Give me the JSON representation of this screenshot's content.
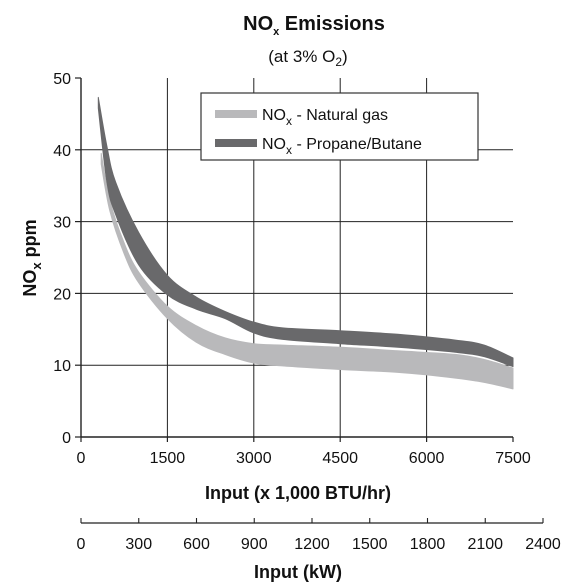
{
  "chart_data": {
    "type": "area",
    "title": {
      "main": "NO",
      "sub": "x",
      "rest": " Emissions"
    },
    "subtitle": {
      "pre": "(at 3% O",
      "sub": "2",
      "post": ")"
    },
    "xlabel": "Input (x 1,000 BTU/hr)",
    "ylabel": {
      "main": "NO",
      "sub": "x",
      "rest": " ppm"
    },
    "xlim": [
      0,
      7500
    ],
    "ylim": [
      0,
      50
    ],
    "x_ticks": [
      "0",
      "1500",
      "3000",
      "4500",
      "6000",
      "7500"
    ],
    "x_tick_values": [
      0,
      1500,
      3000,
      4500,
      6000,
      7500
    ],
    "y_ticks": [
      "0",
      "10",
      "20",
      "30",
      "40",
      "50"
    ],
    "y_tick_values": [
      0,
      10,
      20,
      30,
      40,
      50
    ],
    "grid": true,
    "secondary_x_axis": {
      "label": "Input (kW)",
      "range": [
        0,
        2400
      ],
      "ticks": [
        "0",
        "300",
        "600",
        "900",
        "1200",
        "1500",
        "1800",
        "2100",
        "2400"
      ],
      "tick_values": [
        0,
        300,
        600,
        900,
        1200,
        1500,
        1800,
        2100,
        2400
      ]
    },
    "legend_position": "top-right",
    "series": [
      {
        "legend": {
          "pre": "NO",
          "sub": "x",
          "post": " - Natural gas"
        },
        "color": "#b9b9bb",
        "upper": [
          [
            350,
            39.5
          ],
          [
            500,
            33
          ],
          [
            750,
            27
          ],
          [
            1000,
            23
          ],
          [
            1500,
            18.2
          ],
          [
            2000,
            15.5
          ],
          [
            2500,
            13.8
          ],
          [
            3000,
            13
          ],
          [
            3500,
            12.8
          ],
          [
            4500,
            12.5
          ],
          [
            5500,
            12
          ],
          [
            6500,
            11.5
          ],
          [
            7000,
            10.8
          ],
          [
            7500,
            9.6
          ]
        ],
        "lower": [
          [
            7500,
            6.7
          ],
          [
            7000,
            7.6
          ],
          [
            6500,
            8.2
          ],
          [
            5500,
            9
          ],
          [
            4500,
            9.4
          ],
          [
            3500,
            9.9
          ],
          [
            3000,
            10.3
          ],
          [
            2500,
            11.5
          ],
          [
            2000,
            13.2
          ],
          [
            1500,
            16.5
          ],
          [
            1000,
            21.5
          ],
          [
            750,
            25.5
          ],
          [
            500,
            31.5
          ],
          [
            350,
            38
          ]
        ]
      },
      {
        "legend": {
          "pre": "NO",
          "sub": "x",
          "post": " - Propane/Butane"
        },
        "color": "#69696b",
        "upper": [
          [
            300,
            47.3
          ],
          [
            450,
            40.5
          ],
          [
            600,
            35.5
          ],
          [
            1000,
            28.5
          ],
          [
            1500,
            22.5
          ],
          [
            2000,
            19.5
          ],
          [
            2500,
            17.5
          ],
          [
            3000,
            16
          ],
          [
            3500,
            15.2
          ],
          [
            4500,
            14.8
          ],
          [
            5500,
            14.3
          ],
          [
            6500,
            13.5
          ],
          [
            7000,
            12.8
          ],
          [
            7500,
            11
          ]
        ],
        "lower": [
          [
            7500,
            9.8
          ],
          [
            7000,
            11.2
          ],
          [
            6500,
            11.8
          ],
          [
            5500,
            12.5
          ],
          [
            4500,
            13
          ],
          [
            3500,
            13.6
          ],
          [
            3000,
            14.5
          ],
          [
            2500,
            16.5
          ],
          [
            2000,
            17.8
          ],
          [
            1500,
            19.8
          ],
          [
            1000,
            24
          ],
          [
            600,
            31
          ],
          [
            450,
            35.5
          ],
          [
            300,
            45.8
          ]
        ]
      }
    ]
  }
}
